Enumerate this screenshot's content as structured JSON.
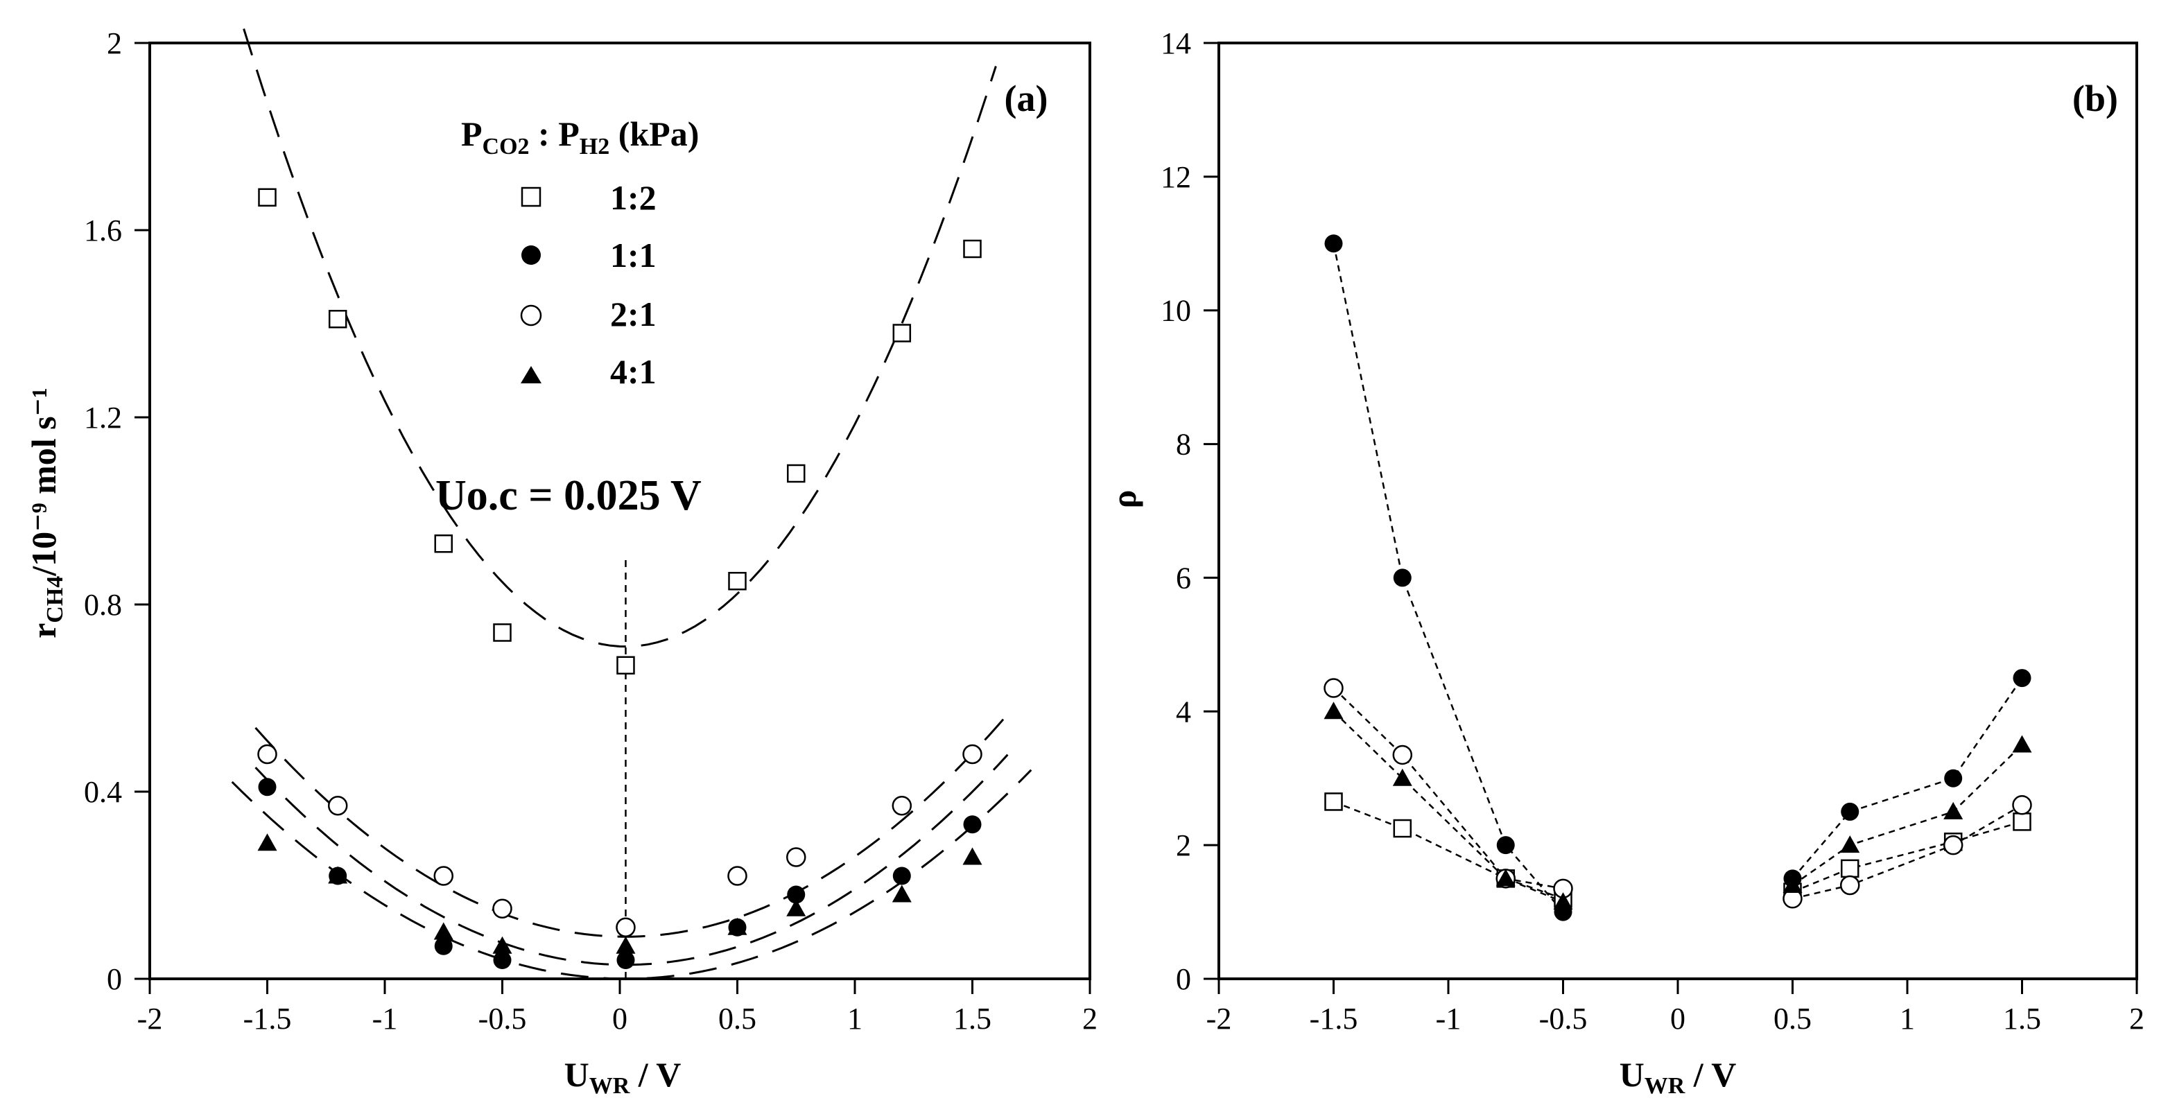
{
  "chart_data": [
    {
      "panel": "(a)",
      "type": "scatter",
      "xlabel_main": "U",
      "xlabel_sub": "WR",
      "xlabel_rest": " / V",
      "ylabel_main": "r",
      "ylabel_sub": "CH4",
      "ylabel_rest": "/10⁻⁹ mol s⁻¹",
      "xlim": [
        -2,
        2
      ],
      "ylim": [
        0,
        2
      ],
      "xticks": [
        -2,
        -1.5,
        -1,
        -0.5,
        0,
        0.5,
        1,
        1.5,
        2
      ],
      "xtick_labels": [
        "-2",
        "-1.5",
        "-1",
        "-0.5",
        "0",
        "0.5",
        "1",
        "1.5",
        "2"
      ],
      "yticks": [
        0,
        0.4,
        0.8,
        1.2,
        1.6,
        2
      ],
      "ytick_labels": [
        "0",
        "0.4",
        "0.8",
        "1.2",
        "1.6",
        "2"
      ],
      "legend_title_main1": "P",
      "legend_title_sub1": "CO2",
      "legend_title_mid": " : P",
      "legend_title_sub2": "H2",
      "legend_title_rest": " (kPa)",
      "annotation": "Uo.c = 0.025 V",
      "annotation_x": 0.025,
      "series": [
        {
          "name": "1:2",
          "marker": "open-square",
          "x": [
            -1.5,
            -1.2,
            -0.75,
            -0.5,
            0.025,
            0.5,
            0.75,
            1.2,
            1.5
          ],
          "y": [
            1.67,
            1.41,
            0.93,
            0.74,
            0.67,
            0.85,
            1.08,
            1.38,
            1.56
          ],
          "fit": {
            "a": 0.5,
            "c": 0.71,
            "range": [
              -1.6,
              1.6
            ]
          }
        },
        {
          "name": "1:1",
          "marker": "filled-circle",
          "x": [
            -1.5,
            -1.2,
            -0.75,
            -0.5,
            0.025,
            0.5,
            0.75,
            1.2,
            1.5
          ],
          "y": [
            0.41,
            0.22,
            0.07,
            0.04,
            0.04,
            0.11,
            0.18,
            0.22,
            0.33
          ],
          "fit": {
            "a": 0.17,
            "c": 0.03,
            "range": [
              -1.55,
              1.65
            ]
          }
        },
        {
          "name": "2:1",
          "marker": "open-circle",
          "x": [
            -1.5,
            -1.2,
            -0.75,
            -0.5,
            0.025,
            0.5,
            0.75,
            1.2,
            1.5
          ],
          "y": [
            0.48,
            0.37,
            0.22,
            0.15,
            0.11,
            0.22,
            0.26,
            0.37,
            0.48
          ],
          "fit": {
            "a": 0.18,
            "c": 0.09,
            "range": [
              -1.55,
              1.65
            ]
          }
        },
        {
          "name": "4:1",
          "marker": "filled-triangle",
          "x": [
            -1.5,
            -1.2,
            -0.75,
            -0.5,
            0.025,
            0.5,
            0.75,
            1.2,
            1.5
          ],
          "y": [
            0.29,
            0.22,
            0.1,
            0.07,
            0.07,
            0.11,
            0.15,
            0.18,
            0.26
          ],
          "fit": {
            "a": 0.15,
            "c": 0.0,
            "range": [
              -1.65,
              1.75
            ]
          }
        }
      ]
    },
    {
      "panel": "(b)",
      "type": "line",
      "xlabel_main": "U",
      "xlabel_sub": "WR",
      "xlabel_rest": " / V",
      "ylabel": "ρ",
      "xlim": [
        -2,
        2
      ],
      "ylim": [
        0,
        14
      ],
      "xticks": [
        -2,
        -1.5,
        -1,
        -0.5,
        0,
        0.5,
        1,
        1.5,
        2
      ],
      "xtick_labels": [
        "-2",
        "-1.5",
        "-1",
        "-0.5",
        "0",
        "0.5",
        "1",
        "1.5",
        "2"
      ],
      "yticks": [
        0,
        2,
        4,
        6,
        8,
        10,
        12,
        14
      ],
      "ytick_labels": [
        "0",
        "2",
        "4",
        "6",
        "8",
        "10",
        "12",
        "14"
      ],
      "series": [
        {
          "name": "1:2",
          "marker": "open-square",
          "x": [
            -1.5,
            -1.2,
            -0.75,
            -0.5,
            0.5,
            0.75,
            1.2,
            1.5
          ],
          "y": [
            2.65,
            2.25,
            1.5,
            1.2,
            1.3,
            1.65,
            2.05,
            2.35
          ]
        },
        {
          "name": "1:1",
          "marker": "filled-circle",
          "x": [
            -1.5,
            -1.2,
            -0.75,
            -0.5,
            0.5,
            0.75,
            1.2,
            1.5
          ],
          "y": [
            11.0,
            6.0,
            2.0,
            1.0,
            1.5,
            2.5,
            3.0,
            4.5
          ]
        },
        {
          "name": "2:1",
          "marker": "open-circle",
          "x": [
            -1.5,
            -1.2,
            -0.75,
            -0.5,
            0.5,
            0.75,
            1.2,
            1.5
          ],
          "y": [
            4.35,
            3.35,
            1.5,
            1.35,
            1.2,
            1.4,
            2.0,
            2.6
          ]
        },
        {
          "name": "4:1",
          "marker": "filled-triangle",
          "x": [
            -1.5,
            -1.2,
            -0.75,
            -0.5,
            0.5,
            0.75,
            1.2,
            1.5
          ],
          "y": [
            4.0,
            3.0,
            1.5,
            1.15,
            1.4,
            2.0,
            2.5,
            3.5
          ]
        }
      ]
    }
  ]
}
